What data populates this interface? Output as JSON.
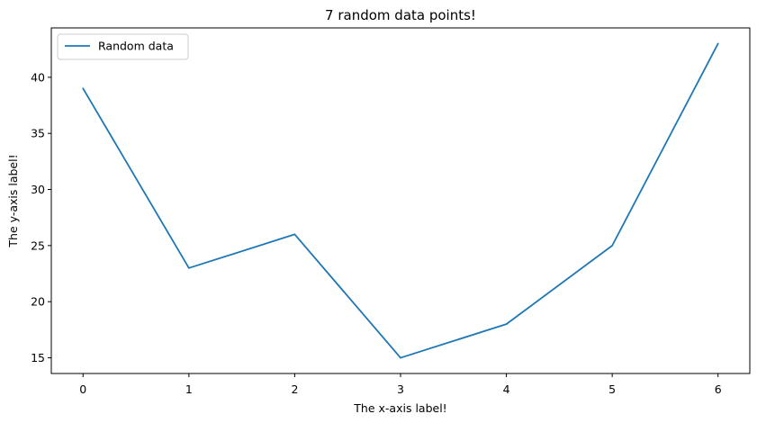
{
  "chart_data": {
    "type": "line",
    "title": "7 random data points!",
    "xlabel": "The x-axis label!",
    "ylabel": "The y-axis label!",
    "x": [
      0,
      1,
      2,
      3,
      4,
      5,
      6
    ],
    "series": [
      {
        "name": "Random data",
        "values": [
          39,
          23,
          26,
          15,
          18,
          25,
          43
        ],
        "color": "#1f77b4"
      }
    ],
    "xlim": [
      -0.3,
      6.3
    ],
    "ylim": [
      13.6,
      44.4
    ],
    "xticks": [
      0,
      1,
      2,
      3,
      4,
      5,
      6
    ],
    "yticks": [
      15,
      20,
      25,
      30,
      35,
      40
    ],
    "grid": false,
    "legend_position": "upper-left"
  }
}
